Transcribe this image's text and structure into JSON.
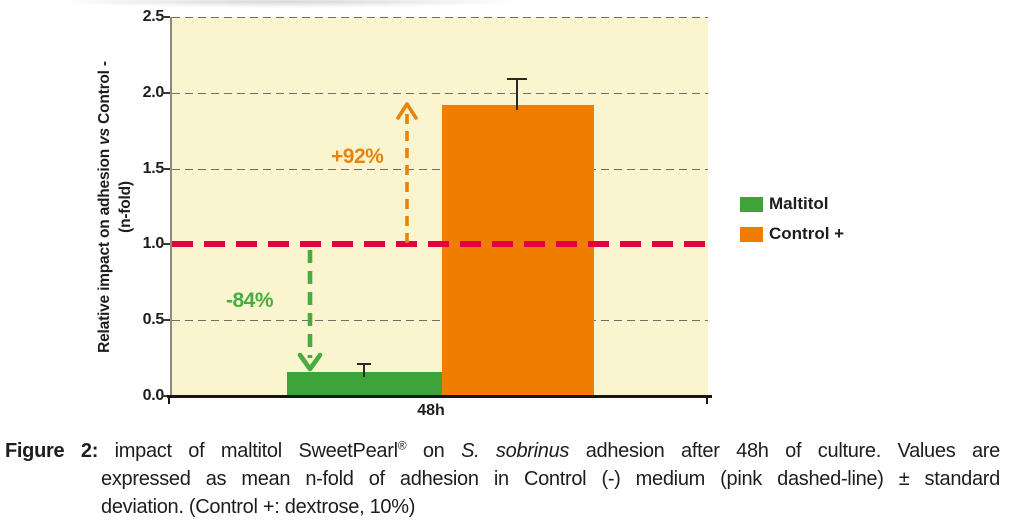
{
  "chart_data": {
    "type": "bar",
    "categories": [
      "48h"
    ],
    "series": [
      {
        "name": "Maltitol",
        "values": [
          0.16
        ],
        "errors": [
          0.06
        ],
        "color": "#3EA43A"
      },
      {
        "name": "Control +",
        "values": [
          1.92
        ],
        "errors": [
          0.18
        ],
        "color": "#EE7D00"
      }
    ],
    "title": "",
    "xlabel": "",
    "ylabel": "Relative impact on adhesion vs Control - (n-fold)",
    "ylim": [
      0,
      2.5
    ],
    "yticks": [
      0.0,
      0.5,
      1.0,
      1.5,
      2.0,
      2.5
    ],
    "grid": "horizontal dashed lines at 0.5 intervals",
    "plot_bg": "#FBF5CF",
    "control_line": {
      "value": 1.0,
      "color": "#E4003F",
      "meaning": "Control (-) baseline, pink dashed line"
    },
    "annotations": [
      {
        "text": "+92%",
        "series": "Control +",
        "color": "#E8830D",
        "direction": "up"
      },
      {
        "text": "-84%",
        "series": "Maltitol",
        "color": "#48AC40",
        "direction": "down"
      }
    ],
    "legend_position": "right"
  },
  "y_axis": {
    "title_pre": "Relative impact on adhesion ",
    "title_vs": "vs",
    "title_post": " Control -",
    "title_line2": "(n-fold)",
    "tick_labels": [
      "2.5",
      "2.0",
      "1.5",
      "1.0",
      "0.5",
      "0.0"
    ]
  },
  "x_axis": {
    "tick_label": "48h"
  },
  "legend": {
    "items": [
      {
        "label": "Maltitol",
        "color": "#3EA43A"
      },
      {
        "label": "Control +",
        "color": "#EE7D00"
      }
    ]
  },
  "caption": {
    "prefix": "Figure 2:",
    "l1a": " impact of maltitol SweetPearl",
    "l1sup": "®",
    "l1b": " on ",
    "l1italic": "S. sobrinus",
    "l1c": " adhesion after 48h of culture. Values are",
    "l2": "expressed as mean n-fold of adhesion in Control (-) medium (pink dashed-line) ± standard",
    "l3": "deviation. (Control +: dextrose, 10%)"
  }
}
